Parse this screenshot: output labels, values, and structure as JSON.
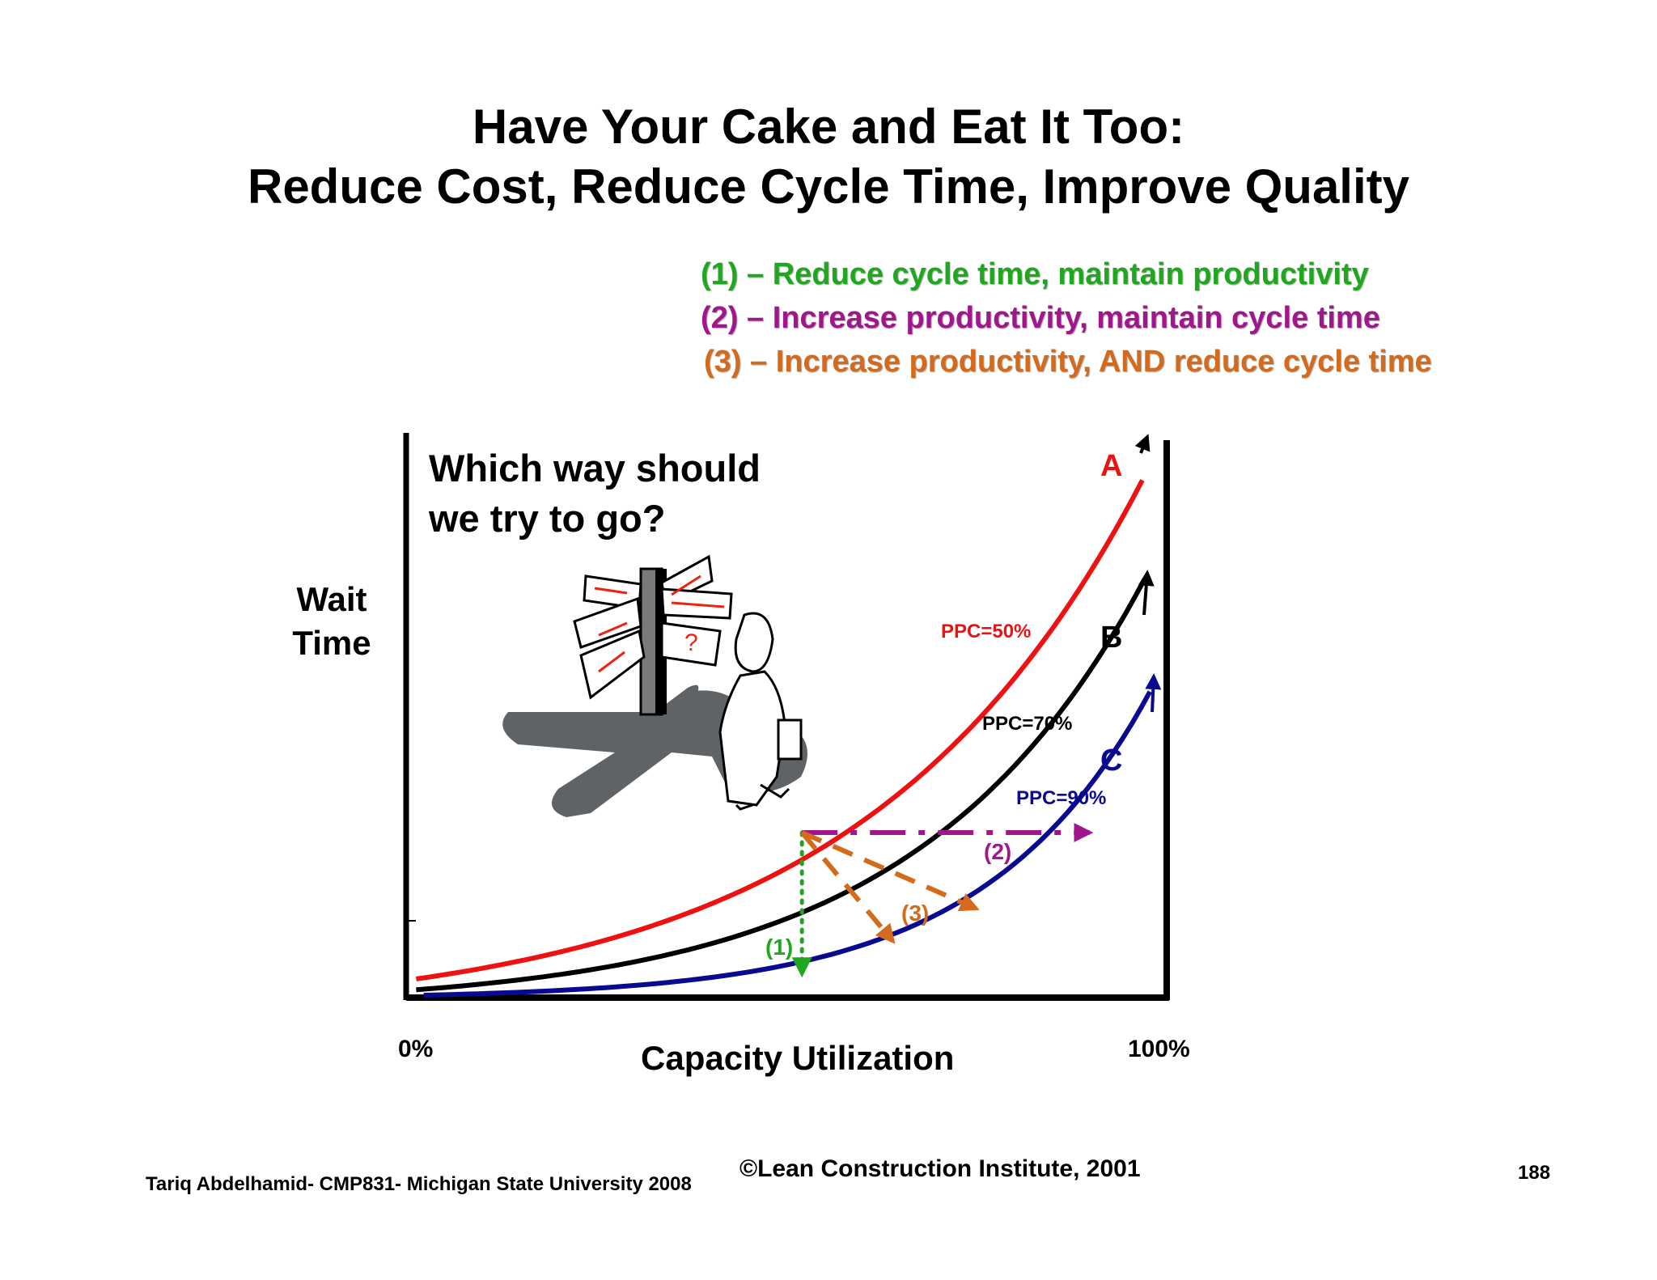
{
  "slide": {
    "title_line1": "Have Your Cake and Eat It Too:",
    "title_line2": "Reduce Cost, Reduce Cycle Time, Improve Quality",
    "legend": [
      {
        "text": "(1) – Reduce cycle time, maintain productivity",
        "color": "#1fa81f"
      },
      {
        "text": "(2) – Increase productivity, maintain cycle time",
        "color": "#a0168c"
      },
      {
        "text": "(3) – Increase productivity, AND reduce cycle time",
        "color": "#d36a1c"
      }
    ],
    "question_line1": "Which way should",
    "question_line2": "we try to go?",
    "footer_left": "Tariq Abdelhamid- CMP831- Michigan State University 2008",
    "footer_center": "©Lean Construction Institute, 2001",
    "page_number": "188"
  },
  "chart_data": {
    "type": "line",
    "title": "Which way should we try to go?",
    "xlabel": "Capacity Utilization",
    "ylabel_line1": "Wait",
    "ylabel_line2": "Time",
    "xtick_labels": [
      "0%",
      "100%"
    ],
    "x_range": [
      0,
      100
    ],
    "y_range": [
      0,
      100
    ],
    "series": [
      {
        "name": "A",
        "label": "PPC=50%",
        "color": "#ee1111",
        "x": [
          1,
          20,
          40,
          53,
          70,
          85,
          97
        ],
        "y": [
          2,
          12,
          26,
          30,
          51,
          72,
          95
        ]
      },
      {
        "name": "B",
        "label": "PPC=70%",
        "color": "#000000",
        "x": [
          1,
          20,
          40,
          53,
          70,
          85,
          97
        ],
        "y": [
          1,
          8,
          17,
          18,
          33,
          52,
          76
        ]
      },
      {
        "name": "C",
        "label": "PPC=90%",
        "color": "#0a0a90",
        "x": [
          2,
          20,
          40,
          53,
          70,
          85,
          98
        ],
        "y": [
          0,
          2,
          7,
          5,
          18,
          35,
          56
        ]
      }
    ],
    "arrows": [
      {
        "label": "(1)",
        "color": "#1fa81f",
        "from": [
          52,
          30
        ],
        "to": [
          52,
          4
        ]
      },
      {
        "label": "(2)",
        "color": "#a0168c",
        "from": [
          52,
          30
        ],
        "to": [
          90,
          30
        ]
      },
      {
        "label": "(3)",
        "color": "#d36a1c",
        "from": [
          52,
          30
        ],
        "to": [
          64,
          10
        ]
      },
      {
        "label": "(3)",
        "color": "#d36a1c",
        "from": [
          52,
          30
        ],
        "to": [
          75,
          16
        ]
      }
    ]
  }
}
